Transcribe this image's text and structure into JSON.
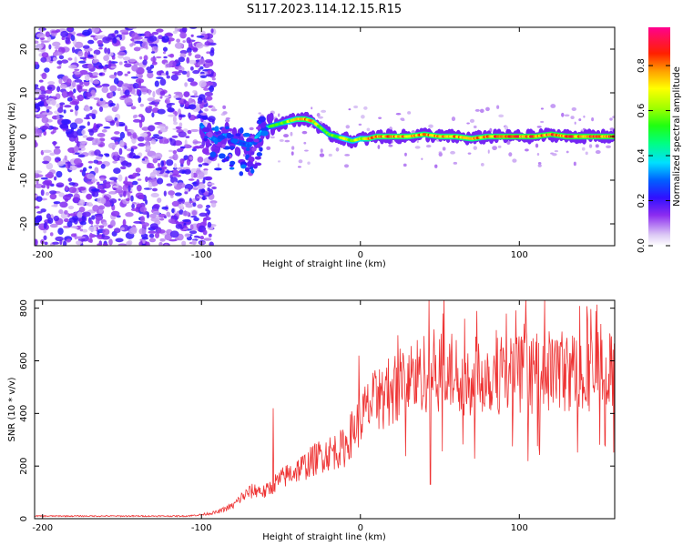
{
  "figure": {
    "title": "S117.2023.114.12.15.R15"
  },
  "chart_data": [
    {
      "type": "heatmap",
      "xlabel": "Height of straight line (km)",
      "ylabel": "Frequency (Hz)",
      "xlim": [
        -205,
        160
      ],
      "ylim": [
        -25,
        25
      ],
      "x_ticks": [
        -200,
        -100,
        0,
        100
      ],
      "y_ticks": [
        -20,
        -10,
        0,
        10,
        20
      ],
      "colorbar": {
        "label": "Normalized spectral amplitude",
        "range": [
          0,
          0.97
        ],
        "ticks": [
          0.0,
          0.2,
          0.4,
          0.6,
          0.8
        ],
        "colormap": "rainbow (white-violet-blue-cyan-green-yellow-red-magenta)"
      },
      "trace": {
        "x": [
          -100,
          -95,
          -90,
          -85,
          -80,
          -75,
          -70,
          -65,
          -60,
          -55,
          -50,
          -45,
          -40,
          -35,
          -30,
          -25,
          -20,
          -15,
          -10,
          -5,
          0,
          5,
          10,
          20,
          30,
          40,
          50,
          60,
          70,
          80,
          90,
          100,
          110,
          120,
          130,
          140,
          150,
          160
        ],
        "y": [
          2.5,
          0,
          -1,
          0.5,
          -1,
          -1.5,
          -2,
          0,
          2,
          2.5,
          3,
          3.5,
          4,
          4,
          3.5,
          2,
          0.5,
          0,
          -0.5,
          -1,
          -0.5,
          -0.5,
          0,
          0,
          0,
          0.5,
          0,
          0,
          -0.5,
          0,
          0,
          0,
          0,
          0.5,
          0,
          0,
          0,
          0
        ],
        "amplitude": [
          0.35,
          0.4,
          0.3,
          0.35,
          0.3,
          0.3,
          0.3,
          0.4,
          0.45,
          0.6,
          0.6,
          0.7,
          0.8,
          0.85,
          0.8,
          0.6,
          0.6,
          0.6,
          0.7,
          0.65,
          0.7,
          0.8,
          0.85,
          0.85,
          0.85,
          0.85,
          0.85,
          0.85,
          0.85,
          0.85,
          0.9,
          0.9,
          0.9,
          0.9,
          0.9,
          0.9,
          0.9,
          0.9
        ]
      },
      "noise_region_x": [
        -205,
        -100
      ]
    },
    {
      "type": "line",
      "xlabel": "Height of straight line (km)",
      "ylabel": "SNR (10 * v/v)",
      "xlim": [
        -205,
        160
      ],
      "ylim": [
        0,
        830
      ],
      "x_ticks": [
        -200,
        -100,
        0,
        100
      ],
      "y_ticks": [
        0,
        200,
        400,
        600,
        800
      ],
      "series": [
        {
          "color": "#ee3333",
          "envelope": {
            "x": [
              -205,
              -110,
              -100,
              -90,
              -80,
              -75,
              -70,
              -65,
              -60,
              -55,
              -50,
              -45,
              -40,
              -35,
              -30,
              -25,
              -20,
              -15,
              -10,
              -5,
              -2,
              0,
              5,
              10,
              15,
              20,
              25,
              30,
              35,
              40,
              45,
              50,
              55,
              60,
              65,
              70,
              75,
              80,
              85,
              90,
              95,
              100,
              105,
              110,
              115,
              120,
              125,
              130,
              135,
              140,
              145,
              150,
              155,
              160
            ],
            "y": [
              10,
              10,
              15,
              25,
              50,
              80,
              100,
              110,
              100,
              130,
              150,
              170,
              185,
              200,
              220,
              240,
              250,
              260,
              270,
              330,
              360,
              380,
              420,
              450,
              470,
              490,
              520,
              530,
              540,
              555,
              565,
              560,
              560,
              550,
              545,
              540,
              545,
              550,
              545,
              550,
              555,
              550,
              545,
              550,
              555,
              560,
              570,
              555,
              560,
              565,
              560,
              565,
              555,
              560
            ]
          },
          "spikes": [
            {
              "x": -55,
              "y": 420
            },
            {
              "x": -1,
              "y": 620
            },
            {
              "x": 43,
              "y": 830
            },
            {
              "x": 44,
              "y": 130
            },
            {
              "x": 52,
              "y": 780
            }
          ]
        }
      ]
    }
  ]
}
